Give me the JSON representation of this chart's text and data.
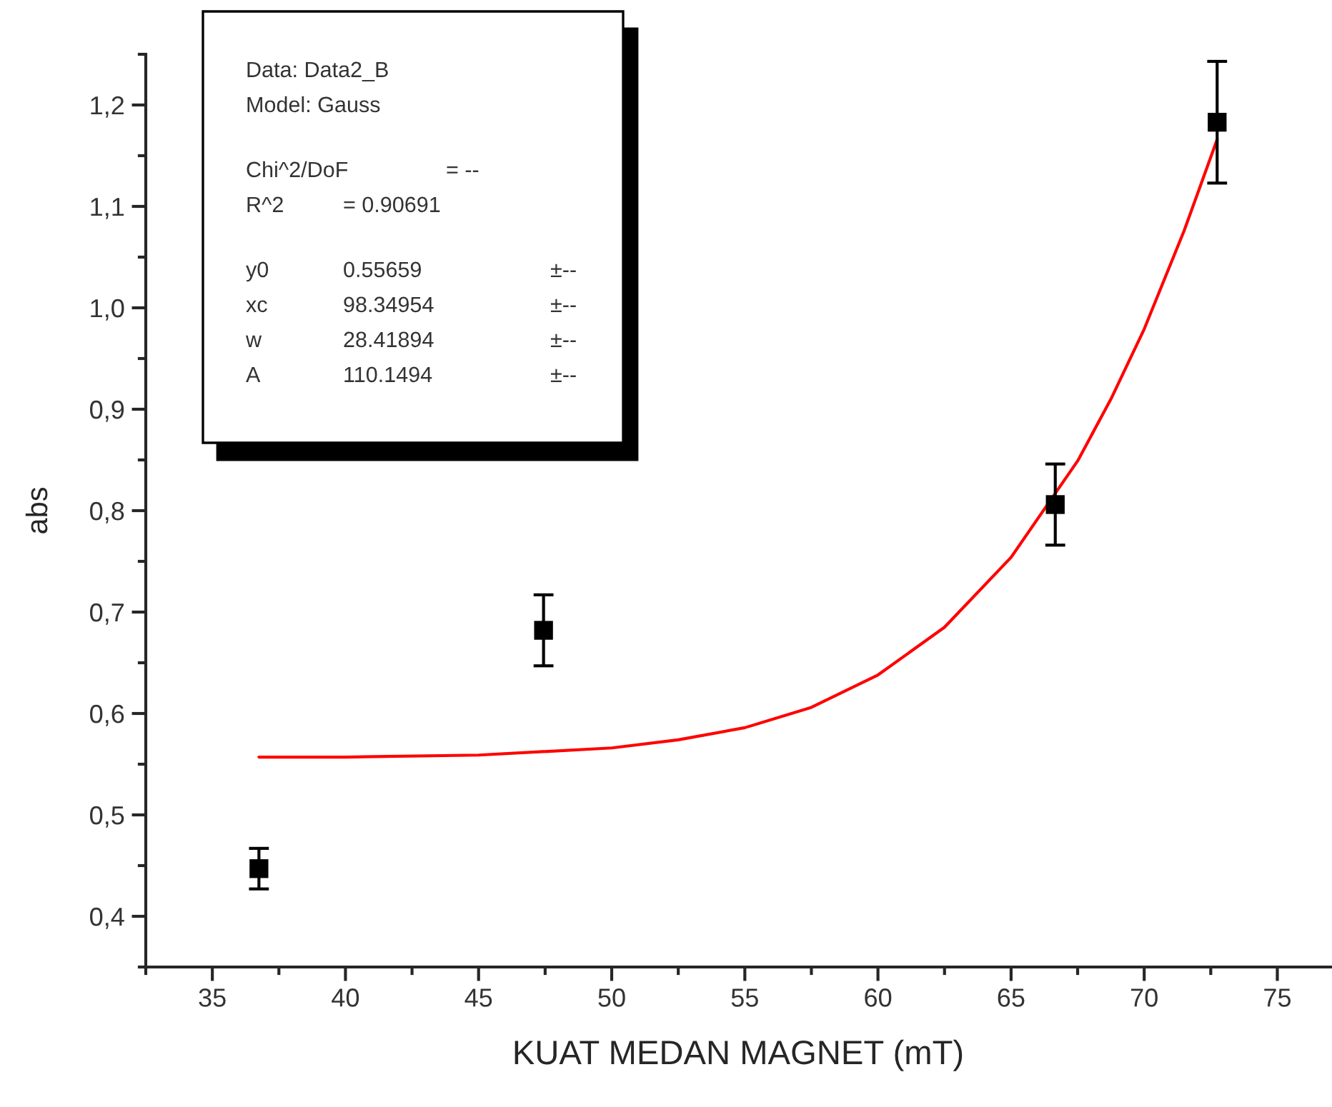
{
  "chart_data": {
    "type": "scatter",
    "xlabel": "KUAT MEDAN MAGNET (mT)",
    "ylabel": "abs",
    "xlim": [
      32.5,
      77
    ],
    "ylim": [
      0.35,
      1.25
    ],
    "xticks": [
      35,
      40,
      45,
      50,
      55,
      60,
      65,
      70,
      75
    ],
    "yticks": [
      {
        "value": 0.4,
        "label": "0,4"
      },
      {
        "value": 0.5,
        "label": "0,5"
      },
      {
        "value": 0.6,
        "label": "0,6"
      },
      {
        "value": 0.7,
        "label": "0,7"
      },
      {
        "value": 0.8,
        "label": "0,8"
      },
      {
        "value": 0.9,
        "label": "0,9"
      },
      {
        "value": 1.0,
        "label": "1,0"
      },
      {
        "value": 1.1,
        "label": "1,1"
      },
      {
        "value": 1.2,
        "label": "1,2"
      }
    ],
    "grid": false,
    "legend": false,
    "series": [
      {
        "color": "#000000",
        "marker": "square",
        "x": [
          36.75,
          47.44,
          66.66,
          72.74
        ],
        "values": [
          0.447,
          0.682,
          0.806,
          1.183
        ],
        "errors": [
          0.02,
          0.035,
          0.04,
          0.06
        ]
      },
      {
        "type": "line",
        "color": "#ff0000",
        "marker": "none",
        "line_style": "solid",
        "x": [
          36.75,
          40,
          45,
          50,
          52.5,
          55,
          57.5,
          60,
          62.5,
          65,
          67.5,
          68.75,
          70,
          71.5,
          72.74
        ],
        "values": [
          0.557,
          0.557,
          0.559,
          0.566,
          0.574,
          0.586,
          0.606,
          0.638,
          0.685,
          0.754,
          0.849,
          0.91,
          0.979,
          1.076,
          1.166
        ]
      }
    ],
    "annotations": [
      "Data: Data2_B",
      "Model: Gauss",
      "Chi^2/DoF\t\t= --",
      "R^2\t= 0.90691",
      "y0\t0.55659\t±--",
      "xc\t98.34954\t±--",
      "w\t28.41894\t±--",
      "A\t110.1494\t±--"
    ]
  }
}
